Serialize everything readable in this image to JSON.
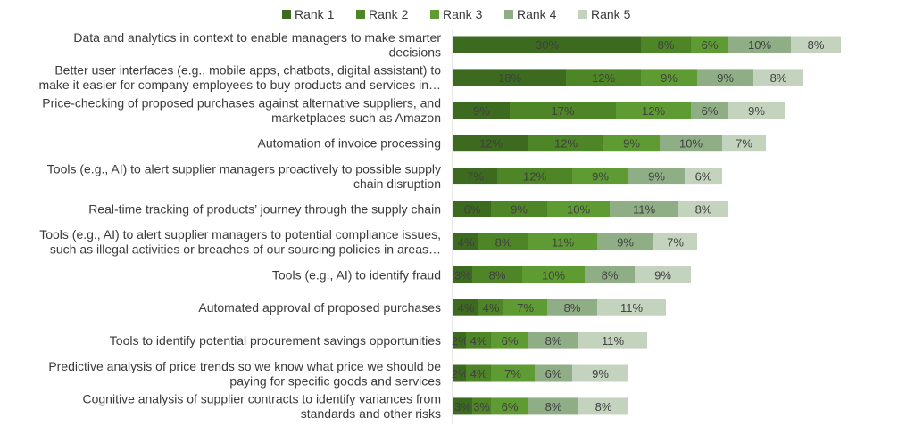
{
  "chart_data": {
    "type": "bar",
    "orientation": "horizontal",
    "stacked": true,
    "title": "",
    "xlabel": "",
    "ylabel": "",
    "xlim": [
      0,
      70
    ],
    "grid": false,
    "legend_position": "top",
    "colors": [
      "#3c6b1f",
      "#4e8526",
      "#5e9b32",
      "#8fae85",
      "#c3d3bd"
    ],
    "categories": [
      {
        "lines": [
          "Data and analytics in context to enable managers to make smarter",
          "decisions"
        ]
      },
      {
        "lines": [
          "Better user interfaces (e.g., mobile apps, chatbots, digital assistant) to",
          "make it easier for company employees to buy products and services in…"
        ]
      },
      {
        "lines": [
          "Price-checking of proposed purchases against alternative suppliers, and",
          "marketplaces such as Amazon"
        ]
      },
      {
        "lines": [
          "Automation of invoice processing"
        ]
      },
      {
        "lines": [
          "Tools (e.g., AI) to alert supplier managers proactively to possible supply",
          "chain disruption"
        ]
      },
      {
        "lines": [
          "Real-time tracking of products’ journey through the supply chain"
        ]
      },
      {
        "lines": [
          "Tools (e.g., AI) to alert supplier managers to potential compliance issues,",
          "such as illegal activities or breaches of our sourcing policies in areas…"
        ]
      },
      {
        "lines": [
          "Tools (e.g., AI) to identify fraud"
        ]
      },
      {
        "lines": [
          "Automated approval of proposed purchases"
        ]
      },
      {
        "lines": [
          "Tools to identify potential procurement savings opportunities"
        ]
      },
      {
        "lines": [
          "Predictive analysis of price trends so we know what price we should be",
          "paying for specific goods and services"
        ]
      },
      {
        "lines": [
          "Cognitive analysis of supplier contracts to identify variances from",
          "standards and other risks"
        ]
      }
    ],
    "series": [
      {
        "name": "Rank 1",
        "values": [
          30,
          18,
          9,
          12,
          7,
          6,
          4,
          3,
          4,
          2,
          2,
          3
        ]
      },
      {
        "name": "Rank 2",
        "values": [
          8,
          12,
          17,
          12,
          12,
          9,
          8,
          8,
          4,
          4,
          4,
          3
        ]
      },
      {
        "name": "Rank 3",
        "values": [
          6,
          9,
          12,
          9,
          9,
          10,
          11,
          10,
          7,
          6,
          7,
          6
        ]
      },
      {
        "name": "Rank 4",
        "values": [
          10,
          9,
          6,
          10,
          9,
          11,
          9,
          8,
          8,
          8,
          6,
          8
        ]
      },
      {
        "name": "Rank 5",
        "values": [
          8,
          8,
          9,
          7,
          6,
          8,
          7,
          9,
          11,
          11,
          9,
          8
        ]
      }
    ],
    "value_suffix": "%"
  }
}
